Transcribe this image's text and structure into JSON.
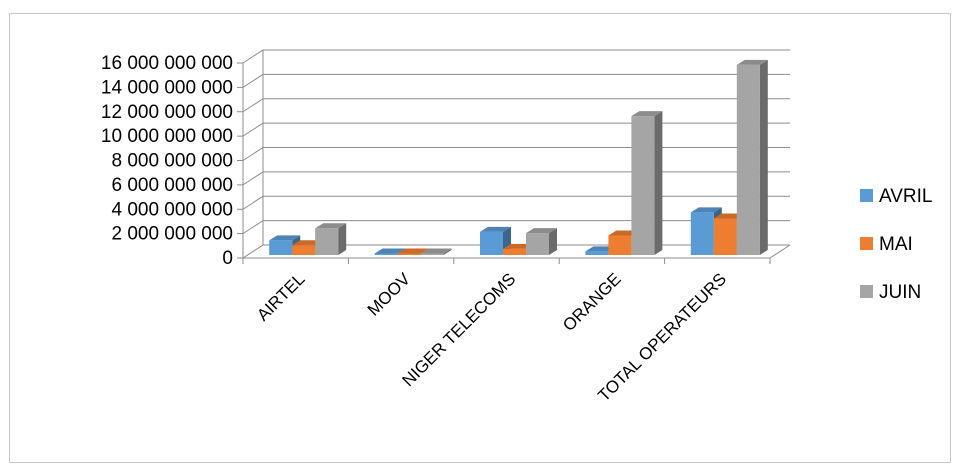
{
  "chart_data": {
    "type": "bar",
    "categories": [
      "AIRTEL",
      "MOOV",
      "NIGER TELECOMS",
      "ORANGE",
      "TOTAL OPERATEURS"
    ],
    "series": [
      {
        "name": "AVRIL",
        "color": "#5b9bd5",
        "values": [
          1200000000,
          20000000,
          1900000000,
          300000000,
          3500000000
        ]
      },
      {
        "name": "MAI",
        "color": "#ed7d31",
        "values": [
          800000000,
          30000000,
          500000000,
          1600000000,
          3000000000
        ]
      },
      {
        "name": "JUIN",
        "color": "#a5a5a5",
        "values": [
          2200000000,
          20000000,
          1800000000,
          11400000000,
          15600000000
        ]
      }
    ],
    "y_ticks": [
      "0",
      "2 000 000 000",
      "4 000 000 000",
      "6 000 000 000",
      "8 000 000 000",
      "10 000 000 000",
      "12 000 000 000",
      "14 000 000 000",
      "16 000 000 000"
    ],
    "ylim": [
      0,
      16000000000
    ],
    "grid": true,
    "legend_position": "right",
    "title": "",
    "xlabel": "",
    "ylabel": ""
  }
}
